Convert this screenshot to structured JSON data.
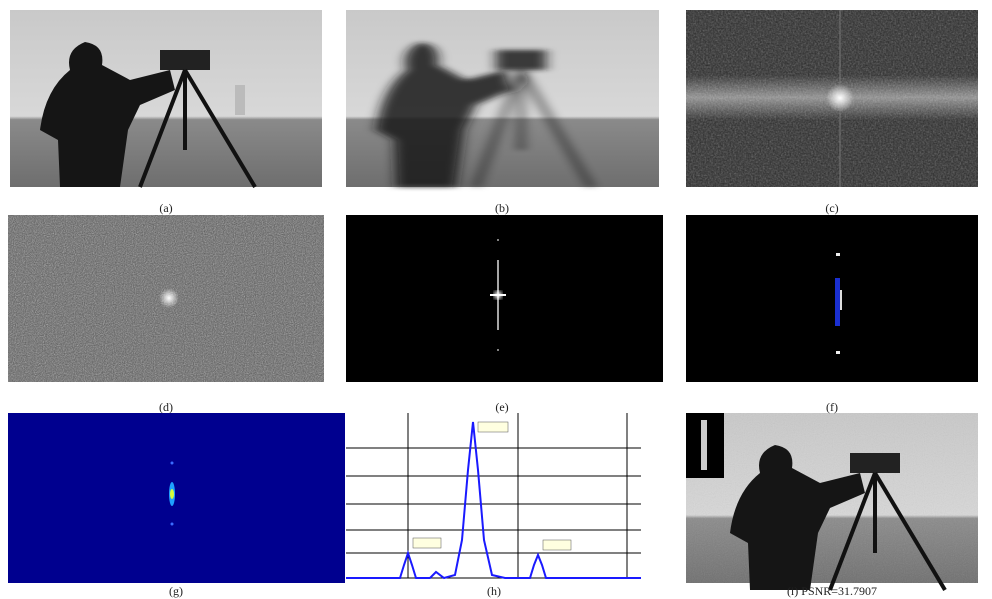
{
  "panels": [
    {
      "caption": "(a)"
    },
    {
      "caption": "(b)"
    },
    {
      "caption": "(c)"
    },
    {
      "caption": "(d)"
    },
    {
      "caption": "(e)"
    },
    {
      "caption": "(f)"
    },
    {
      "caption": "(g)"
    },
    {
      "caption": "(h)"
    },
    {
      "caption": "(i) PSNR=31.7907"
    }
  ]
}
